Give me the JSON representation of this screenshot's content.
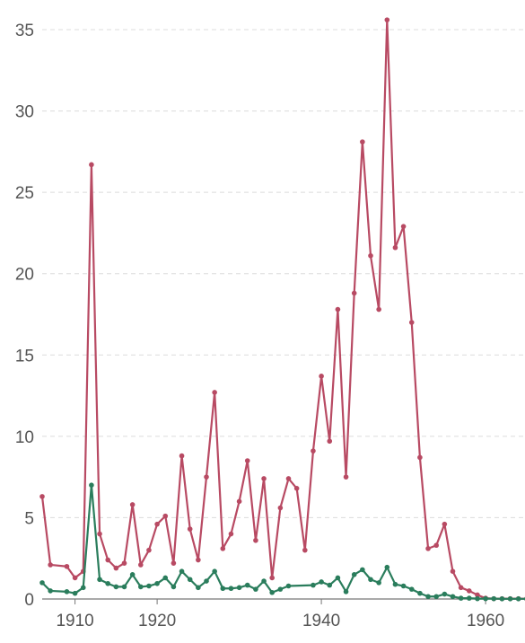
{
  "chart_data": {
    "type": "line",
    "title": "",
    "xlabel": "",
    "ylabel": "",
    "xlim": [
      1906,
      1969
    ],
    "ylim": [
      0,
      36
    ],
    "grid": true,
    "yticks": [
      0,
      5,
      10,
      15,
      20,
      25,
      30,
      35
    ],
    "xticks": [
      1910,
      1920,
      1940,
      1960
    ],
    "colors": {
      "series_1": "#b84a63",
      "series_2": "#2a7d5c",
      "axis": "#777777",
      "grid": "#dcdcdc"
    },
    "series": [
      {
        "points": [
          [
            1906,
            6.3
          ],
          [
            1907,
            2.1
          ],
          [
            1909,
            2.0
          ],
          [
            1910,
            1.3
          ],
          [
            1911,
            1.7
          ],
          [
            1912,
            26.7
          ],
          [
            1913,
            4.0
          ],
          [
            1914,
            2.4
          ],
          [
            1915,
            1.9
          ],
          [
            1916,
            2.2
          ],
          [
            1917,
            5.8
          ],
          [
            1918,
            2.1
          ],
          [
            1919,
            3.0
          ],
          [
            1920,
            4.6
          ],
          [
            1921,
            5.1
          ],
          [
            1922,
            2.2
          ],
          [
            1923,
            8.8
          ],
          [
            1924,
            4.3
          ],
          [
            1925,
            2.4
          ],
          [
            1926,
            7.5
          ],
          [
            1927,
            12.7
          ],
          [
            1928,
            3.1
          ],
          [
            1929,
            4.0
          ],
          [
            1930,
            6.0
          ],
          [
            1931,
            8.5
          ],
          [
            1932,
            3.6
          ],
          [
            1933,
            7.4
          ],
          [
            1934,
            1.3
          ],
          [
            1935,
            5.6
          ],
          [
            1936,
            7.4
          ],
          [
            1937,
            6.8
          ],
          [
            1938,
            3.0
          ],
          [
            1939,
            9.1
          ],
          [
            1940,
            13.7
          ],
          [
            1941,
            9.7
          ],
          [
            1942,
            17.8
          ],
          [
            1943,
            7.5
          ],
          [
            1944,
            18.8
          ],
          [
            1945,
            28.1
          ],
          [
            1946,
            21.1
          ],
          [
            1947,
            17.8
          ],
          [
            1948,
            35.6
          ],
          [
            1949,
            21.6
          ],
          [
            1950,
            22.9
          ],
          [
            1951,
            17.0
          ],
          [
            1952,
            8.7
          ],
          [
            1953,
            3.1
          ],
          [
            1954,
            3.3
          ],
          [
            1955,
            4.6
          ],
          [
            1956,
            1.7
          ],
          [
            1957,
            0.7
          ],
          [
            1958,
            0.5
          ],
          [
            1959,
            0.25
          ],
          [
            1960,
            0.05
          ],
          [
            1961,
            0.02
          ],
          [
            1962,
            0.02
          ],
          [
            1963,
            0.02
          ],
          [
            1964,
            0.02
          ],
          [
            1965,
            0.01
          ],
          [
            1966,
            0.01
          ],
          [
            1967,
            0.01
          ],
          [
            1968,
            0.01
          ]
        ]
      },
      {
        "points": [
          [
            1906,
            1.0
          ],
          [
            1907,
            0.5
          ],
          [
            1909,
            0.45
          ],
          [
            1910,
            0.35
          ],
          [
            1911,
            0.7
          ],
          [
            1912,
            7.0
          ],
          [
            1913,
            1.2
          ],
          [
            1914,
            0.95
          ],
          [
            1915,
            0.75
          ],
          [
            1916,
            0.75
          ],
          [
            1917,
            1.5
          ],
          [
            1918,
            0.75
          ],
          [
            1919,
            0.8
          ],
          [
            1920,
            0.95
          ],
          [
            1921,
            1.3
          ],
          [
            1922,
            0.75
          ],
          [
            1923,
            1.7
          ],
          [
            1924,
            1.2
          ],
          [
            1925,
            0.7
          ],
          [
            1926,
            1.1
          ],
          [
            1927,
            1.7
          ],
          [
            1928,
            0.65
          ],
          [
            1929,
            0.65
          ],
          [
            1930,
            0.7
          ],
          [
            1931,
            0.85
          ],
          [
            1932,
            0.6
          ],
          [
            1933,
            1.1
          ],
          [
            1934,
            0.4
          ],
          [
            1935,
            0.6
          ],
          [
            1936,
            0.8
          ],
          [
            1939,
            0.85
          ],
          [
            1940,
            1.05
          ],
          [
            1941,
            0.85
          ],
          [
            1942,
            1.3
          ],
          [
            1943,
            0.45
          ],
          [
            1944,
            1.5
          ],
          [
            1945,
            1.8
          ],
          [
            1946,
            1.2
          ],
          [
            1947,
            1.0
          ],
          [
            1948,
            1.95
          ],
          [
            1949,
            0.9
          ],
          [
            1950,
            0.8
          ],
          [
            1951,
            0.6
          ],
          [
            1952,
            0.35
          ],
          [
            1953,
            0.15
          ],
          [
            1954,
            0.15
          ],
          [
            1955,
            0.3
          ],
          [
            1956,
            0.15
          ],
          [
            1957,
            0.05
          ],
          [
            1958,
            0.05
          ],
          [
            1959,
            0.02
          ],
          [
            1960,
            0.02
          ],
          [
            1961,
            0.02
          ],
          [
            1962,
            0.01
          ],
          [
            1963,
            0.01
          ],
          [
            1964,
            0.01
          ],
          [
            1965,
            0.01
          ],
          [
            1966,
            0.01
          ],
          [
            1967,
            0.01
          ],
          [
            1968,
            0.01
          ]
        ]
      }
    ]
  }
}
